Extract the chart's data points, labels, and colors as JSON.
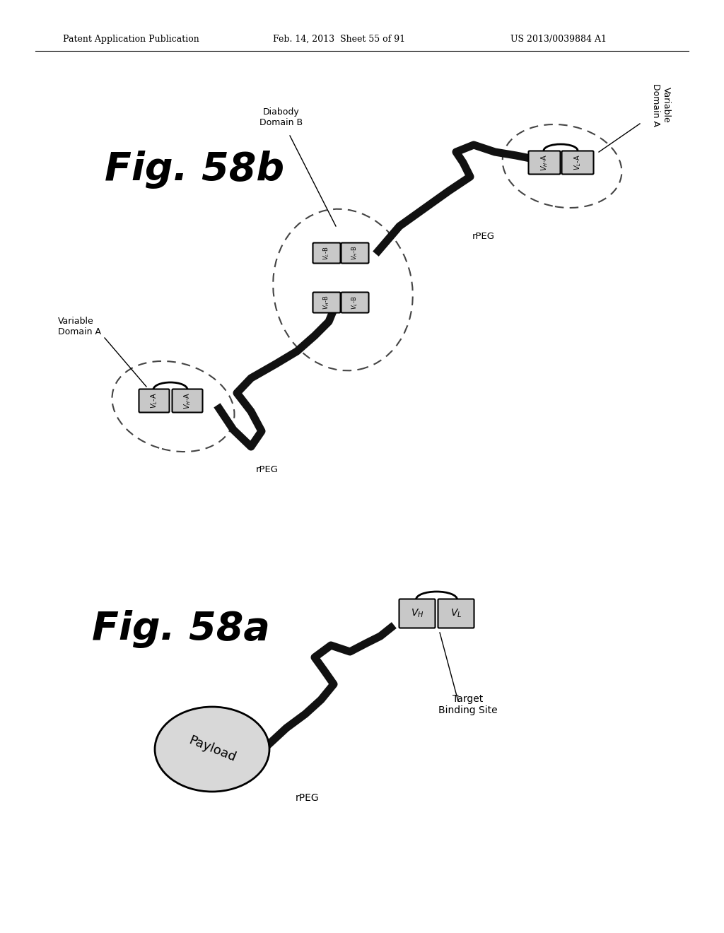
{
  "background_color": "#ffffff",
  "header_left": "Patent Application Publication",
  "header_center": "Feb. 14, 2013  Sheet 55 of 91",
  "header_right": "US 2013/0039884 A1",
  "fig58b_label": "Fig. 58b",
  "fig58a_label": "Fig. 58a",
  "domain_fill": "#c8c8c8",
  "domain_edge": "#000000",
  "payload_fill": "#d8d8d8",
  "rPEG_color": "#111111",
  "dashed_color": "#444444"
}
